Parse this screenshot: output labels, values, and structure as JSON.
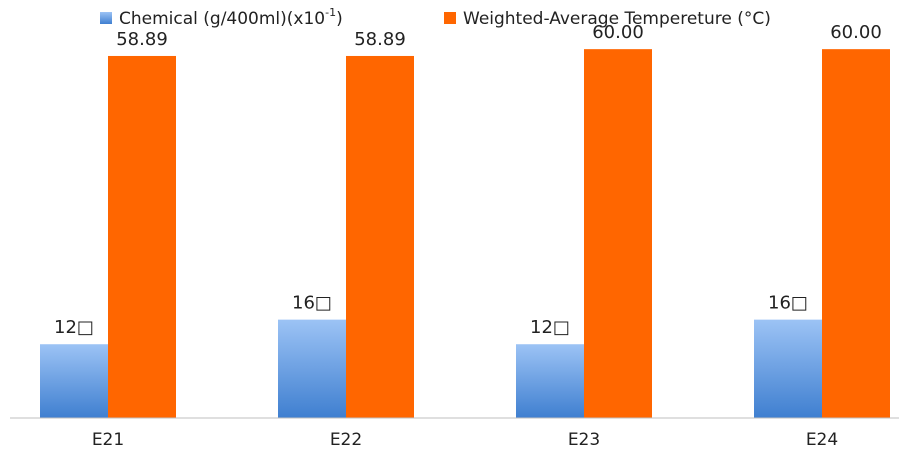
{
  "chart_data": {
    "type": "bar",
    "categories": [
      "E21",
      "E22",
      "E23",
      "E24"
    ],
    "series": [
      {
        "name": "Chemical (g/400ml)(x10-1)",
        "name_base": "Chemical (g/400ml)(x10",
        "name_sup": "-1",
        "name_tail": ")",
        "values": [
          12,
          16,
          12,
          16
        ],
        "labels": [
          "12□",
          "16□",
          "12□",
          "16□"
        ],
        "color_top": "#9cc3f5",
        "color_bottom": "#3f7fd0"
      },
      {
        "name": "Weighted-Average Tempereture (°C)",
        "values": [
          58.89,
          58.89,
          60.0,
          60.0
        ],
        "labels": [
          "58.89",
          "58.89",
          "60.00",
          "60.00"
        ],
        "color": "#ff6600"
      }
    ],
    "ylim": [
      0,
      61
    ],
    "grid": false,
    "legend_position": "top"
  }
}
